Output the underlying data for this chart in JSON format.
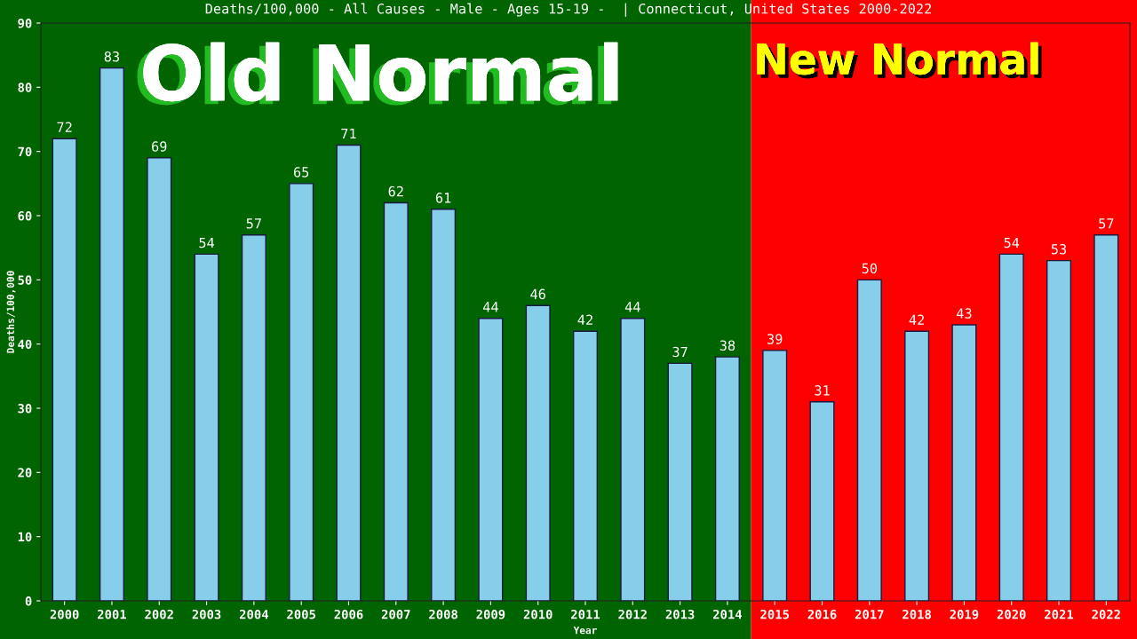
{
  "chart_data": {
    "type": "bar",
    "title": "Deaths/100,000 - All Causes - Male - Ages 15-19 -  | Connecticut, United States 2000-2022",
    "xlabel": "Year",
    "ylabel": "Deaths/100,000",
    "categories": [
      "2000",
      "2001",
      "2002",
      "2003",
      "2004",
      "2005",
      "2006",
      "2007",
      "2008",
      "2009",
      "2010",
      "2011",
      "2012",
      "2013",
      "2014",
      "2015",
      "2016",
      "2017",
      "2018",
      "2019",
      "2020",
      "2021",
      "2022"
    ],
    "values": [
      72,
      83,
      69,
      54,
      57,
      65,
      71,
      62,
      61,
      44,
      46,
      42,
      44,
      37,
      38,
      39,
      31,
      50,
      42,
      43,
      54,
      53,
      57
    ],
    "color": "#87ceeb",
    "data_labels": true,
    "ylim": [
      0,
      90
    ],
    "yticks": [
      0,
      10,
      20,
      30,
      40,
      50,
      60,
      70,
      80,
      90
    ],
    "grid": false,
    "bands": [
      {
        "axis": "x",
        "from": "2000",
        "to": "2014",
        "label": "Old Normal",
        "color": "#006400"
      },
      {
        "axis": "x",
        "from": "2015",
        "to": "2022",
        "label": "New Normal",
        "color": "#ff0000"
      }
    ]
  }
}
